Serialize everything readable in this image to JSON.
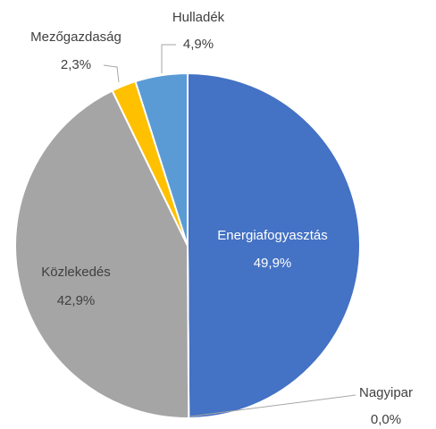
{
  "chart_data": {
    "type": "pie",
    "categories": [
      "Energiafogyasztás",
      "Nagyipar",
      "Közlekedés",
      "Mezőgazdaság",
      "Hulladék"
    ],
    "values": [
      49.9,
      0.0,
      42.9,
      2.3,
      4.9
    ],
    "value_labels": [
      "49,9%",
      "0,0%",
      "42,9%",
      "2,3%",
      "4,9%"
    ],
    "colors": [
      "#4472c4",
      "#ed7d31",
      "#a5a5a5",
      "#ffc000",
      "#5b9bd5"
    ]
  }
}
